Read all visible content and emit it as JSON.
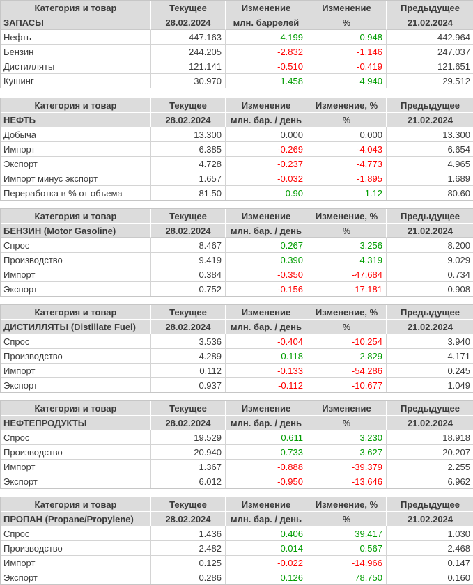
{
  "colors": {
    "positive_change": "#009c00",
    "negative_change": "#ff0000",
    "neutral_change": "#3c3c3c",
    "header_background": "#dcdcdc"
  },
  "tables": [
    {
      "header": [
        "Категория и товар",
        "Текущее",
        "Изменение",
        "Изменение",
        "Предыдущее"
      ],
      "subheader": [
        "ЗАПАСЫ",
        "28.02.2024",
        "млн. баррелей",
        "%",
        "21.02.2024"
      ],
      "rows": [
        [
          "Нефть",
          "447.163",
          "4.199",
          "0.948",
          "442.964"
        ],
        [
          "Бензин",
          "244.205",
          "-2.832",
          "-1.146",
          "247.037"
        ],
        [
          "Дистилляты",
          "121.141",
          "-0.510",
          "-0.419",
          "121.651"
        ],
        [
          "Кушинг",
          "30.970",
          "1.458",
          "4.940",
          "29.512"
        ]
      ]
    },
    {
      "header": [
        "Категория и товар",
        "Текущее",
        "Изменение",
        "Изменение, %",
        "Предыдущее"
      ],
      "subheader": [
        "НЕФТЬ",
        "28.02.2024",
        "млн. бар. / день",
        "%",
        "21.02.2024"
      ],
      "rows": [
        [
          "Добыча",
          "13.300",
          "0.000",
          "0.000",
          "13.300"
        ],
        [
          "Импорт",
          "6.385",
          "-0.269",
          "-4.043",
          "6.654"
        ],
        [
          "Экспорт",
          "4.728",
          "-0.237",
          "-4.773",
          "4.965"
        ],
        [
          "Импорт минус экспорт",
          "1.657",
          "-0.032",
          "-1.895",
          "1.689"
        ],
        [
          "Переработка в % от объема",
          "81.50",
          "0.90",
          "1.12",
          "80.60"
        ]
      ]
    },
    {
      "header": [
        "Категория и товар",
        "Текущее",
        "Изменение",
        "Изменение, %",
        "Предыдущее"
      ],
      "subheader": [
        "БЕНЗИН (Motor Gasoline)",
        "28.02.2024",
        "млн. бар. / день",
        "%",
        "21.02.2024"
      ],
      "rows": [
        [
          "Спрос",
          "8.467",
          "0.267",
          "3.256",
          "8.200"
        ],
        [
          "Производство",
          "9.419",
          "0.390",
          "4.319",
          "9.029"
        ],
        [
          "Импорт",
          "0.384",
          "-0.350",
          "-47.684",
          "0.734"
        ],
        [
          "Экспорт",
          "0.752",
          "-0.156",
          "-17.181",
          "0.908"
        ]
      ]
    },
    {
      "header": [
        "Категория и товар",
        "Текущее",
        "Изменение",
        "Изменение, %",
        "Предыдущее"
      ],
      "subheader": [
        "ДИСТИЛЛЯТЫ (Distillate Fuel)",
        "28.02.2024",
        "млн. бар. / день",
        "%",
        "21.02.2024"
      ],
      "rows": [
        [
          "Спрос",
          "3.536",
          "-0.404",
          "-10.254",
          "3.940"
        ],
        [
          "Производство",
          "4.289",
          "0.118",
          "2.829",
          "4.171"
        ],
        [
          "Импорт",
          "0.112",
          "-0.133",
          "-54.286",
          "0.245"
        ],
        [
          "Экспорт",
          "0.937",
          "-0.112",
          "-10.677",
          "1.049"
        ]
      ]
    },
    {
      "header": [
        "Категория и товар",
        "Текущее",
        "Изменение",
        "Изменение",
        "Предыдущее"
      ],
      "subheader": [
        "НЕФТЕПРОДУКТЫ",
        "28.02.2024",
        "млн. бар. / день",
        "%",
        "21.02.2024"
      ],
      "rows": [
        [
          "Спрос",
          "19.529",
          "0.611",
          "3.230",
          "18.918"
        ],
        [
          "Производство",
          "20.940",
          "0.733",
          "3.627",
          "20.207"
        ],
        [
          "Импорт",
          "1.367",
          "-0.888",
          "-39.379",
          "2.255"
        ],
        [
          "Экспорт",
          "6.012",
          "-0.950",
          "-13.646",
          "6.962"
        ]
      ]
    },
    {
      "header": [
        "Категория и товар",
        "Текущее",
        "Изменение",
        "Изменение, %",
        "Предыдущее"
      ],
      "subheader": [
        "ПРОПАН (Propane/Propylene)",
        "28.02.2024",
        "млн. бар. / день",
        "%",
        "21.02.2024"
      ],
      "rows": [
        [
          "Спрос",
          "1.436",
          "0.406",
          "39.417",
          "1.030"
        ],
        [
          "Производство",
          "2.482",
          "0.014",
          "0.567",
          "2.468"
        ],
        [
          "Импорт",
          "0.125",
          "-0.022",
          "-14.966",
          "0.147"
        ],
        [
          "Экспорт",
          "0.286",
          "0.126",
          "78.750",
          "0.160"
        ]
      ]
    }
  ]
}
